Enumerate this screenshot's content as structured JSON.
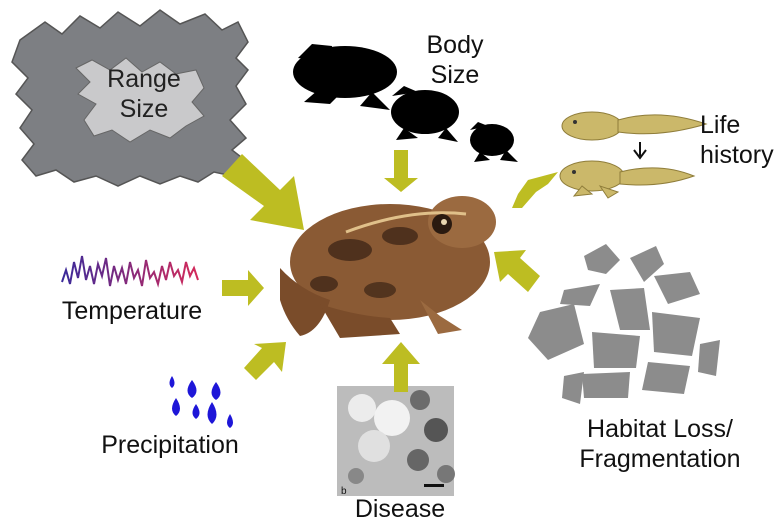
{
  "labels": {
    "range_size": [
      "Range",
      "Size"
    ],
    "body_size": [
      "Body",
      "Size"
    ],
    "life_history": [
      "Life",
      "history"
    ],
    "temperature": "Temperature",
    "precipitation": "Precipitation",
    "habitat": [
      "Habitat Loss/",
      "Fragmentation"
    ],
    "disease": "Disease"
  },
  "micrograph_scale_letter": "b",
  "colors": {
    "arrow": "#bdbd22",
    "range_outer": "#7d7f83",
    "range_inner": "#c9c9cb",
    "silhouette": "#000000",
    "tadpole": "#cbb86a",
    "temperature_line_start": "#3a2a9a",
    "temperature_line_end": "#d42a5a",
    "raindrop": "#1e16d8",
    "habitat_patch": "#8c8c8c",
    "frog_body": "#8a5a34"
  }
}
